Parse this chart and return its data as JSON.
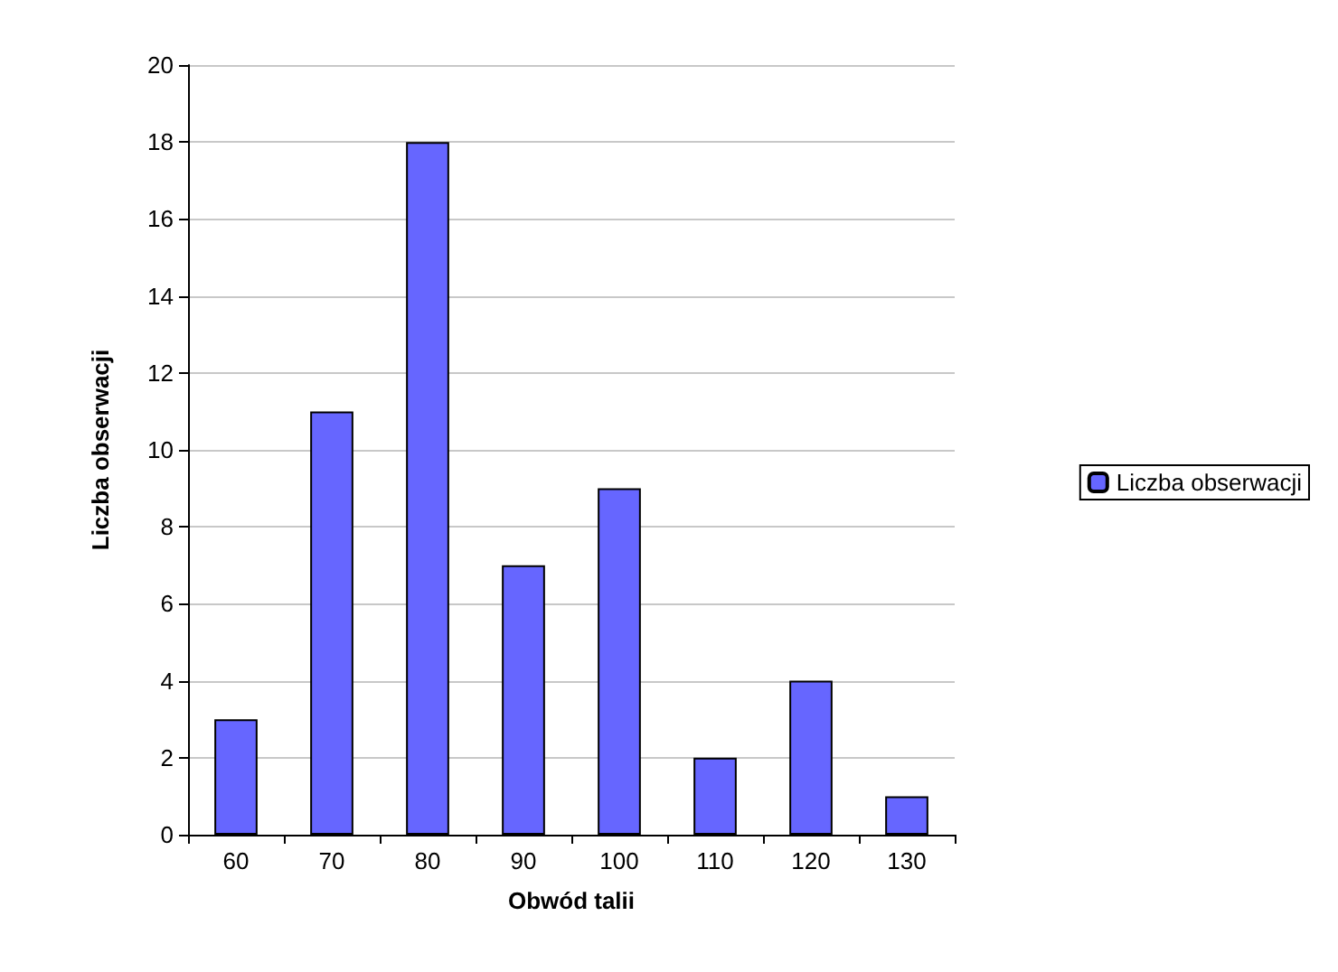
{
  "chart_data": {
    "type": "bar",
    "xlabel": "Obwód talii",
    "ylabel": "Liczba obserwacji",
    "categories": [
      "60",
      "70",
      "80",
      "90",
      "100",
      "110",
      "120",
      "130"
    ],
    "series": [
      {
        "name": "Liczba obserwacji",
        "color": "#6666ff",
        "values": [
          3,
          11,
          18,
          7,
          9,
          2,
          4,
          1
        ]
      }
    ],
    "ylim": [
      0,
      20
    ],
    "yticks": [
      0,
      2,
      4,
      6,
      8,
      10,
      12,
      14,
      16,
      18,
      20
    ],
    "grid": "y",
    "legend": "right"
  }
}
